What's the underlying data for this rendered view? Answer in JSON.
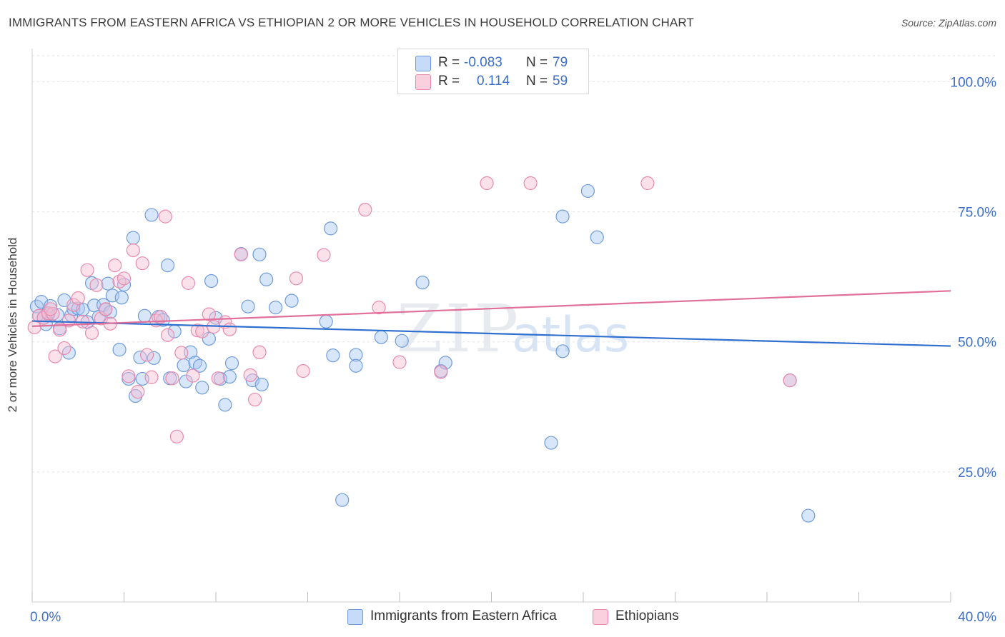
{
  "title": "IMMIGRANTS FROM EASTERN AFRICA VS ETHIOPIAN 2 OR MORE VEHICLES IN HOUSEHOLD CORRELATION CHART",
  "source": "Source: ZipAtlas.com",
  "watermark": {
    "zip": "ZIP",
    "atlas": "atlas"
  },
  "legend": {
    "rows": [
      {
        "r_label": "R =",
        "r_value": "-0.083",
        "n_label": "N =",
        "n_value": "79",
        "color": "#a9c8f2",
        "border": "#5b8fd6"
      },
      {
        "r_label": "R =",
        "r_value": "0.114",
        "n_label": "N =",
        "n_value": "59",
        "color": "#f7bcd0",
        "border": "#e0799e"
      }
    ]
  },
  "colors": {
    "blue_fill": "#a9c8f2",
    "blue_line": "#2f6fd0",
    "pink_fill": "#f7bcd0",
    "pink_line": "#e0709a",
    "tick_label": "#3d6ec9"
  },
  "chart_data": {
    "type": "scatter",
    "xlabel": "",
    "ylabel": "2 or more Vehicles in Household",
    "xlim": [
      0,
      40
    ],
    "ylim": [
      0,
      105
    ],
    "x_tick_labels": [
      {
        "value": 0,
        "label": "0.0%"
      },
      {
        "value": 40,
        "label": "40.0%"
      }
    ],
    "y_tick_labels": [
      {
        "value": 25,
        "label": "25.0%"
      },
      {
        "value": 50,
        "label": "50.0%"
      },
      {
        "value": 75,
        "label": "75.0%"
      },
      {
        "value": 100,
        "label": "100.0%"
      }
    ],
    "grid": true,
    "legend_position": "top-center",
    "series": [
      {
        "name": "Immigrants from Eastern Africa",
        "color": "#a9c8f2",
        "trend": [
          [
            0,
            54.0
          ],
          [
            40,
            49.2
          ]
        ],
        "points": [
          [
            0.2,
            56.8
          ],
          [
            0.3,
            55.0
          ],
          [
            0.4,
            57.7
          ],
          [
            0.5,
            54.6
          ],
          [
            0.6,
            53.4
          ],
          [
            0.7,
            55.3
          ],
          [
            0.8,
            56.9
          ],
          [
            1.1,
            55.2
          ],
          [
            1.2,
            52.6
          ],
          [
            1.4,
            58.0
          ],
          [
            1.6,
            47.9
          ],
          [
            1.7,
            55.1
          ],
          [
            1.8,
            56.3
          ],
          [
            2.0,
            56.4
          ],
          [
            2.2,
            56.2
          ],
          [
            2.4,
            53.8
          ],
          [
            2.6,
            61.3
          ],
          [
            2.7,
            57.0
          ],
          [
            2.9,
            54.8
          ],
          [
            3.1,
            57.1
          ],
          [
            3.2,
            56.2
          ],
          [
            3.3,
            61.2
          ],
          [
            3.4,
            55.7
          ],
          [
            3.5,
            58.9
          ],
          [
            3.8,
            48.5
          ],
          [
            3.9,
            58.5
          ],
          [
            4.0,
            61.0
          ],
          [
            4.2,
            42.9
          ],
          [
            4.4,
            70.0
          ],
          [
            4.5,
            39.6
          ],
          [
            4.7,
            47.0
          ],
          [
            4.8,
            42.9
          ],
          [
            4.9,
            55.0
          ],
          [
            5.2,
            74.4
          ],
          [
            5.3,
            46.9
          ],
          [
            5.5,
            54.8
          ],
          [
            5.7,
            54.2
          ],
          [
            5.9,
            64.7
          ],
          [
            6.0,
            43.0
          ],
          [
            6.2,
            52.0
          ],
          [
            6.6,
            45.5
          ],
          [
            6.7,
            42.4
          ],
          [
            6.9,
            48.0
          ],
          [
            7.1,
            46.0
          ],
          [
            7.3,
            45.4
          ],
          [
            7.4,
            41.2
          ],
          [
            7.7,
            50.6
          ],
          [
            7.8,
            61.7
          ],
          [
            8.0,
            54.6
          ],
          [
            8.2,
            42.9
          ],
          [
            8.4,
            37.9
          ],
          [
            8.6,
            43.3
          ],
          [
            8.7,
            45.9
          ],
          [
            9.1,
            66.9
          ],
          [
            9.4,
            56.8
          ],
          [
            9.6,
            42.6
          ],
          [
            9.9,
            66.8
          ],
          [
            10.0,
            41.8
          ],
          [
            10.2,
            62.0
          ],
          [
            10.6,
            56.6
          ],
          [
            11.3,
            57.9
          ],
          [
            12.8,
            53.9
          ],
          [
            13.0,
            71.8
          ],
          [
            13.1,
            47.4
          ],
          [
            13.5,
            19.6
          ],
          [
            14.1,
            47.5
          ],
          [
            14.1,
            45.4
          ],
          [
            15.2,
            50.9
          ],
          [
            16.1,
            50.2
          ],
          [
            17.0,
            61.4
          ],
          [
            17.8,
            44.4
          ],
          [
            18.0,
            46.0
          ],
          [
            22.6,
            30.6
          ],
          [
            23.1,
            48.2
          ],
          [
            23.1,
            74.1
          ],
          [
            24.2,
            79.0
          ],
          [
            24.6,
            70.1
          ],
          [
            33.0,
            42.6
          ],
          [
            33.8,
            16.6
          ]
        ]
      },
      {
        "name": "Ethiopians",
        "color": "#f7bcd0",
        "trend": [
          [
            0,
            53.0
          ],
          [
            40,
            59.8
          ]
        ],
        "points": [
          [
            0.1,
            52.8
          ],
          [
            0.3,
            55.0
          ],
          [
            0.5,
            54.6
          ],
          [
            0.7,
            55.5
          ],
          [
            0.9,
            55.4
          ],
          [
            1.0,
            47.2
          ],
          [
            1.2,
            52.3
          ],
          [
            1.4,
            48.8
          ],
          [
            1.6,
            54.1
          ],
          [
            1.8,
            57.1
          ],
          [
            2.0,
            58.4
          ],
          [
            2.2,
            53.9
          ],
          [
            2.4,
            63.8
          ],
          [
            2.6,
            51.7
          ],
          [
            2.8,
            60.9
          ],
          [
            3.0,
            54.5
          ],
          [
            3.2,
            56.3
          ],
          [
            3.4,
            53.5
          ],
          [
            3.6,
            64.7
          ],
          [
            3.8,
            61.6
          ],
          [
            4.0,
            62.2
          ],
          [
            4.2,
            43.4
          ],
          [
            4.4,
            67.6
          ],
          [
            4.6,
            40.4
          ],
          [
            4.8,
            65.1
          ],
          [
            5.0,
            47.5
          ],
          [
            5.2,
            43.2
          ],
          [
            5.4,
            54.1
          ],
          [
            5.6,
            54.8
          ],
          [
            5.8,
            74.1
          ],
          [
            5.9,
            51.3
          ],
          [
            6.1,
            43.0
          ],
          [
            6.3,
            31.8
          ],
          [
            6.5,
            47.9
          ],
          [
            6.8,
            61.3
          ],
          [
            7.0,
            43.5
          ],
          [
            7.2,
            52.2
          ],
          [
            7.4,
            52.0
          ],
          [
            7.7,
            55.3
          ],
          [
            7.9,
            52.9
          ],
          [
            8.1,
            43.0
          ],
          [
            8.4,
            53.8
          ],
          [
            8.6,
            52.4
          ],
          [
            9.1,
            66.8
          ],
          [
            9.5,
            43.6
          ],
          [
            9.7,
            38.9
          ],
          [
            9.9,
            48.0
          ],
          [
            11.5,
            62.2
          ],
          [
            11.8,
            44.4
          ],
          [
            12.7,
            66.7
          ],
          [
            14.5,
            75.4
          ],
          [
            15.1,
            56.6
          ],
          [
            16.0,
            46.1
          ],
          [
            17.8,
            44.2
          ],
          [
            19.8,
            80.5
          ],
          [
            21.7,
            80.5
          ],
          [
            26.8,
            80.5
          ],
          [
            33.0,
            42.6
          ],
          [
            0.8,
            56.3
          ]
        ]
      }
    ]
  }
}
